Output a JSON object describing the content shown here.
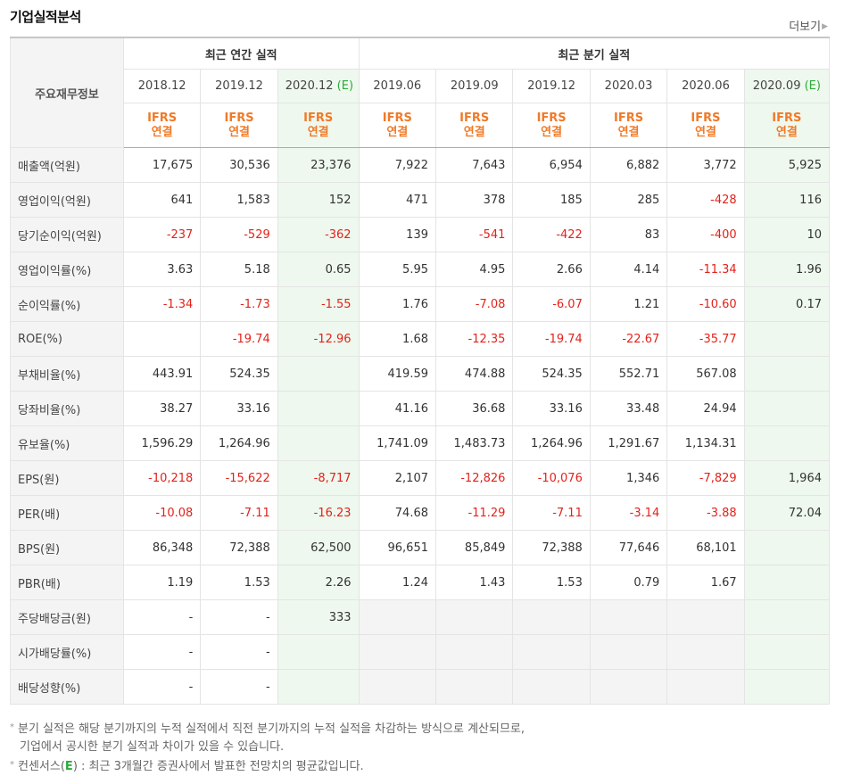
{
  "header": {
    "title": "기업실적분석",
    "more_label": "더보기"
  },
  "table": {
    "corner_label": "주요재무정보",
    "annual_label": "최근 연간 실적",
    "quarter_label": "최근 분기 실적",
    "ifrs_line1": "IFRS",
    "ifrs_line2": "연결",
    "periods": [
      {
        "label": "2018.12",
        "est": ""
      },
      {
        "label": "2019.12",
        "est": ""
      },
      {
        "label": "2020.12",
        "est": "(E)"
      },
      {
        "label": "2019.06",
        "est": ""
      },
      {
        "label": "2019.09",
        "est": ""
      },
      {
        "label": "2019.12",
        "est": ""
      },
      {
        "label": "2020.03",
        "est": ""
      },
      {
        "label": "2020.06",
        "est": ""
      },
      {
        "label": "2020.09",
        "est": "(E)"
      }
    ],
    "rows": [
      {
        "label": "매출액(억원)",
        "values": [
          "17,675",
          "30,536",
          "23,376",
          "7,922",
          "7,643",
          "6,954",
          "6,882",
          "3,772",
          "5,925"
        ]
      },
      {
        "label": "영업이익(억원)",
        "values": [
          "641",
          "1,583",
          "152",
          "471",
          "378",
          "185",
          "285",
          "-428",
          "116"
        ]
      },
      {
        "label": "당기순이익(억원)",
        "values": [
          "-237",
          "-529",
          "-362",
          "139",
          "-541",
          "-422",
          "83",
          "-400",
          "10"
        ]
      },
      {
        "label": "영업이익률(%)",
        "values": [
          "3.63",
          "5.18",
          "0.65",
          "5.95",
          "4.95",
          "2.66",
          "4.14",
          "-11.34",
          "1.96"
        ]
      },
      {
        "label": "순이익률(%)",
        "values": [
          "-1.34",
          "-1.73",
          "-1.55",
          "1.76",
          "-7.08",
          "-6.07",
          "1.21",
          "-10.60",
          "0.17"
        ]
      },
      {
        "label": "ROE(%)",
        "values": [
          "",
          "-19.74",
          "-12.96",
          "1.68",
          "-12.35",
          "-19.74",
          "-22.67",
          "-35.77",
          ""
        ]
      },
      {
        "label": "부채비율(%)",
        "values": [
          "443.91",
          "524.35",
          "",
          "419.59",
          "474.88",
          "524.35",
          "552.71",
          "567.08",
          ""
        ]
      },
      {
        "label": "당좌비율(%)",
        "values": [
          "38.27",
          "33.16",
          "",
          "41.16",
          "36.68",
          "33.16",
          "33.48",
          "24.94",
          ""
        ]
      },
      {
        "label": "유보율(%)",
        "values": [
          "1,596.29",
          "1,264.96",
          "",
          "1,741.09",
          "1,483.73",
          "1,264.96",
          "1,291.67",
          "1,134.31",
          ""
        ]
      },
      {
        "label": "EPS(원)",
        "values": [
          "-10,218",
          "-15,622",
          "-8,717",
          "2,107",
          "-12,826",
          "-10,076",
          "1,346",
          "-7,829",
          "1,964"
        ]
      },
      {
        "label": "PER(배)",
        "values": [
          "-10.08",
          "-7.11",
          "-16.23",
          "74.68",
          "-11.29",
          "-7.11",
          "-3.14",
          "-3.88",
          "72.04"
        ]
      },
      {
        "label": "BPS(원)",
        "values": [
          "86,348",
          "72,388",
          "62,500",
          "96,651",
          "85,849",
          "72,388",
          "77,646",
          "68,101",
          ""
        ]
      },
      {
        "label": "PBR(배)",
        "values": [
          "1.19",
          "1.53",
          "2.26",
          "1.24",
          "1.43",
          "1.53",
          "0.79",
          "1.67",
          ""
        ]
      },
      {
        "label": "주당배당금(원)",
        "values": [
          "-",
          "-",
          "333",
          "",
          "",
          "",
          "",
          "",
          ""
        ]
      },
      {
        "label": "시가배당률(%)",
        "values": [
          "-",
          "-",
          "",
          "",
          "",
          "",
          "",
          "",
          ""
        ]
      },
      {
        "label": "배당성향(%)",
        "values": [
          "-",
          "-",
          "",
          "",
          "",
          "",
          "",
          "",
          ""
        ]
      }
    ]
  },
  "notes": {
    "line1": "분기 실적은 해당 분기까지의 누적 실적에서 직전 분기까지의 누적 실적을 차감하는 방식으로 계산되므로,",
    "line2": "기업에서 공시한 분기 실적과 차이가 있을 수 있습니다.",
    "line3_prefix": "컨센서스(",
    "line3_mark": "E",
    "line3_suffix": ") : 최근 3개월간 증권사에서 발표한 전망치의 평균값입니다."
  }
}
